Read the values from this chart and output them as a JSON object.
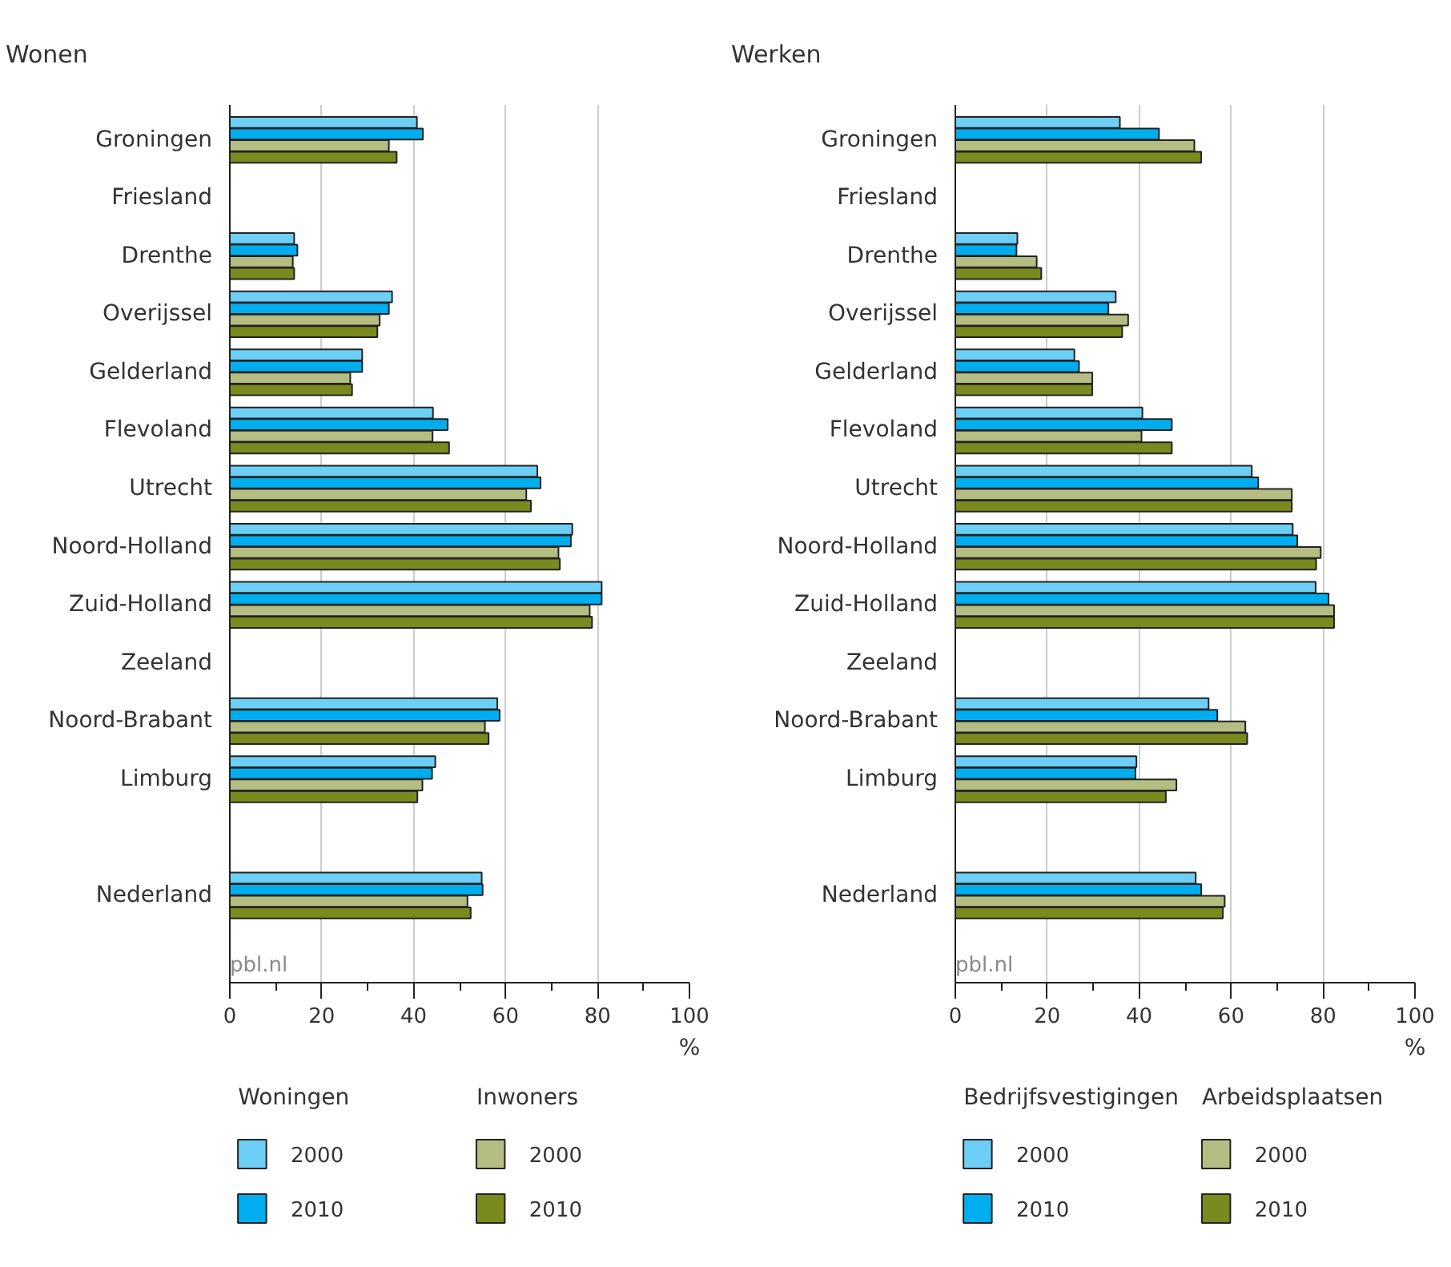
{
  "chart_data": [
    {
      "type": "bar",
      "orientation": "horizontal",
      "title": "Wonen",
      "xlabel": "%",
      "categories": [
        "Groningen",
        "Friesland",
        "Drenthe",
        "Overijssel",
        "Gelderland",
        "Flevoland",
        "Utrecht",
        "Noord-Holland",
        "Zuid-Holland",
        "Zeeland",
        "Noord-Brabant",
        "Limburg",
        null,
        "Nederland"
      ],
      "series": [
        {
          "name": "2000",
          "color": "#6dcff6",
          "values": [
            40.7,
            null,
            14.0,
            35.3,
            28.8,
            44.2,
            66.9,
            74.5,
            80.9,
            null,
            58.2,
            44.7,
            null,
            54.8
          ]
        },
        {
          "name": "2010",
          "color": "#00aeef",
          "values": [
            42.0,
            null,
            14.7,
            34.6,
            28.8,
            47.4,
            67.6,
            74.2,
            80.9,
            null,
            58.7,
            44.0,
            null,
            55.0
          ]
        },
        {
          "name": "2000",
          "color": "#b5bd83",
          "values": [
            34.6,
            null,
            13.7,
            32.6,
            26.2,
            44.1,
            64.5,
            71.5,
            78.3,
            null,
            55.5,
            41.9,
            null,
            51.7
          ]
        },
        {
          "name": "2010",
          "color": "#7a8a1e",
          "values": [
            36.3,
            null,
            14.0,
            32.1,
            26.6,
            47.7,
            65.5,
            71.8,
            78.8,
            null,
            56.3,
            40.8,
            null,
            52.4
          ]
        }
      ],
      "xlim": [
        0,
        100
      ],
      "xticks": [
        0,
        20,
        40,
        60,
        80,
        100
      ],
      "grid": "x",
      "legend": "bottom",
      "annotations": [
        "Woningen",
        "Inwoners",
        "pbl.nl"
      ]
    },
    {
      "type": "bar",
      "orientation": "horizontal",
      "title": "Werken",
      "xlabel": "%",
      "categories": [
        "Groningen",
        "Friesland",
        "Drenthe",
        "Overijssel",
        "Gelderland",
        "Flevoland",
        "Utrecht",
        "Noord-Holland",
        "Zuid-Holland",
        "Zeeland",
        "Noord-Brabant",
        "Limburg",
        null,
        "Nederland"
      ],
      "series": [
        {
          "name": "2000",
          "color": "#6dcff6",
          "values": [
            35.8,
            null,
            13.5,
            34.9,
            25.9,
            40.7,
            64.5,
            73.4,
            78.4,
            null,
            55.1,
            39.4,
            null,
            52.3
          ]
        },
        {
          "name": "2010",
          "color": "#00aeef",
          "values": [
            44.3,
            null,
            13.3,
            33.3,
            26.9,
            47.1,
            65.9,
            74.4,
            81.2,
            null,
            57.0,
            39.2,
            null,
            53.5
          ]
        },
        {
          "name": "2000",
          "color": "#b5bd83",
          "values": [
            52.0,
            null,
            17.7,
            37.6,
            29.8,
            40.5,
            73.2,
            79.5,
            82.4,
            null,
            63.1,
            48.1,
            null,
            58.6
          ]
        },
        {
          "name": "2010",
          "color": "#7a8a1e",
          "values": [
            53.5,
            null,
            18.7,
            36.3,
            29.8,
            47.1,
            73.2,
            78.5,
            82.4,
            null,
            63.5,
            45.8,
            null,
            58.2
          ]
        }
      ],
      "xlim": [
        0,
        100
      ],
      "xticks": [
        0,
        20,
        40,
        60,
        80,
        100
      ],
      "grid": "x",
      "legend": "bottom",
      "annotations": [
        "Bedrijfsvestigingen",
        "Arbeidsplaatsen",
        "pbl.nl"
      ]
    }
  ]
}
